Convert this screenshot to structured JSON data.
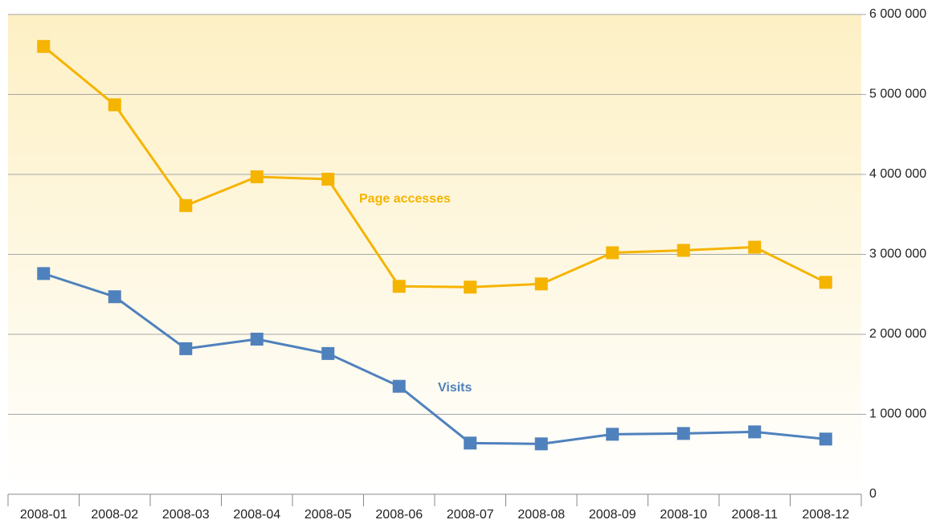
{
  "chart_data": {
    "type": "line",
    "categories": [
      "2008-01",
      "2008-02",
      "2008-03",
      "2008-04",
      "2008-05",
      "2008-06",
      "2008-07",
      "2008-08",
      "2008-09",
      "2008-10",
      "2008-11",
      "2008-12"
    ],
    "series": [
      {
        "name": "Page accesses",
        "color": "#f5b400",
        "values": [
          5600000,
          4870000,
          3610000,
          3970000,
          3940000,
          2600000,
          2590000,
          2630000,
          3020000,
          3050000,
          3090000,
          2650000
        ]
      },
      {
        "name": "Visits",
        "color": "#4f81bd",
        "values": [
          2760000,
          2470000,
          1820000,
          1940000,
          1760000,
          1350000,
          640000,
          630000,
          750000,
          760000,
          780000,
          690000
        ]
      }
    ],
    "ylim": [
      0,
      6000000
    ],
    "yticks": [
      0,
      {
        "value": 1000000,
        "label": "1 000 000"
      },
      {
        "value": 2000000,
        "label": "2 000 000"
      },
      {
        "value": 3000000,
        "label": "3 000 000"
      },
      {
        "value": 4000000,
        "label": "4 000 000"
      },
      {
        "value": 5000000,
        "label": "5 000 000"
      },
      {
        "value": 6000000,
        "label": "6 000 000"
      }
    ],
    "grid": true,
    "y_axis_side": "right"
  }
}
